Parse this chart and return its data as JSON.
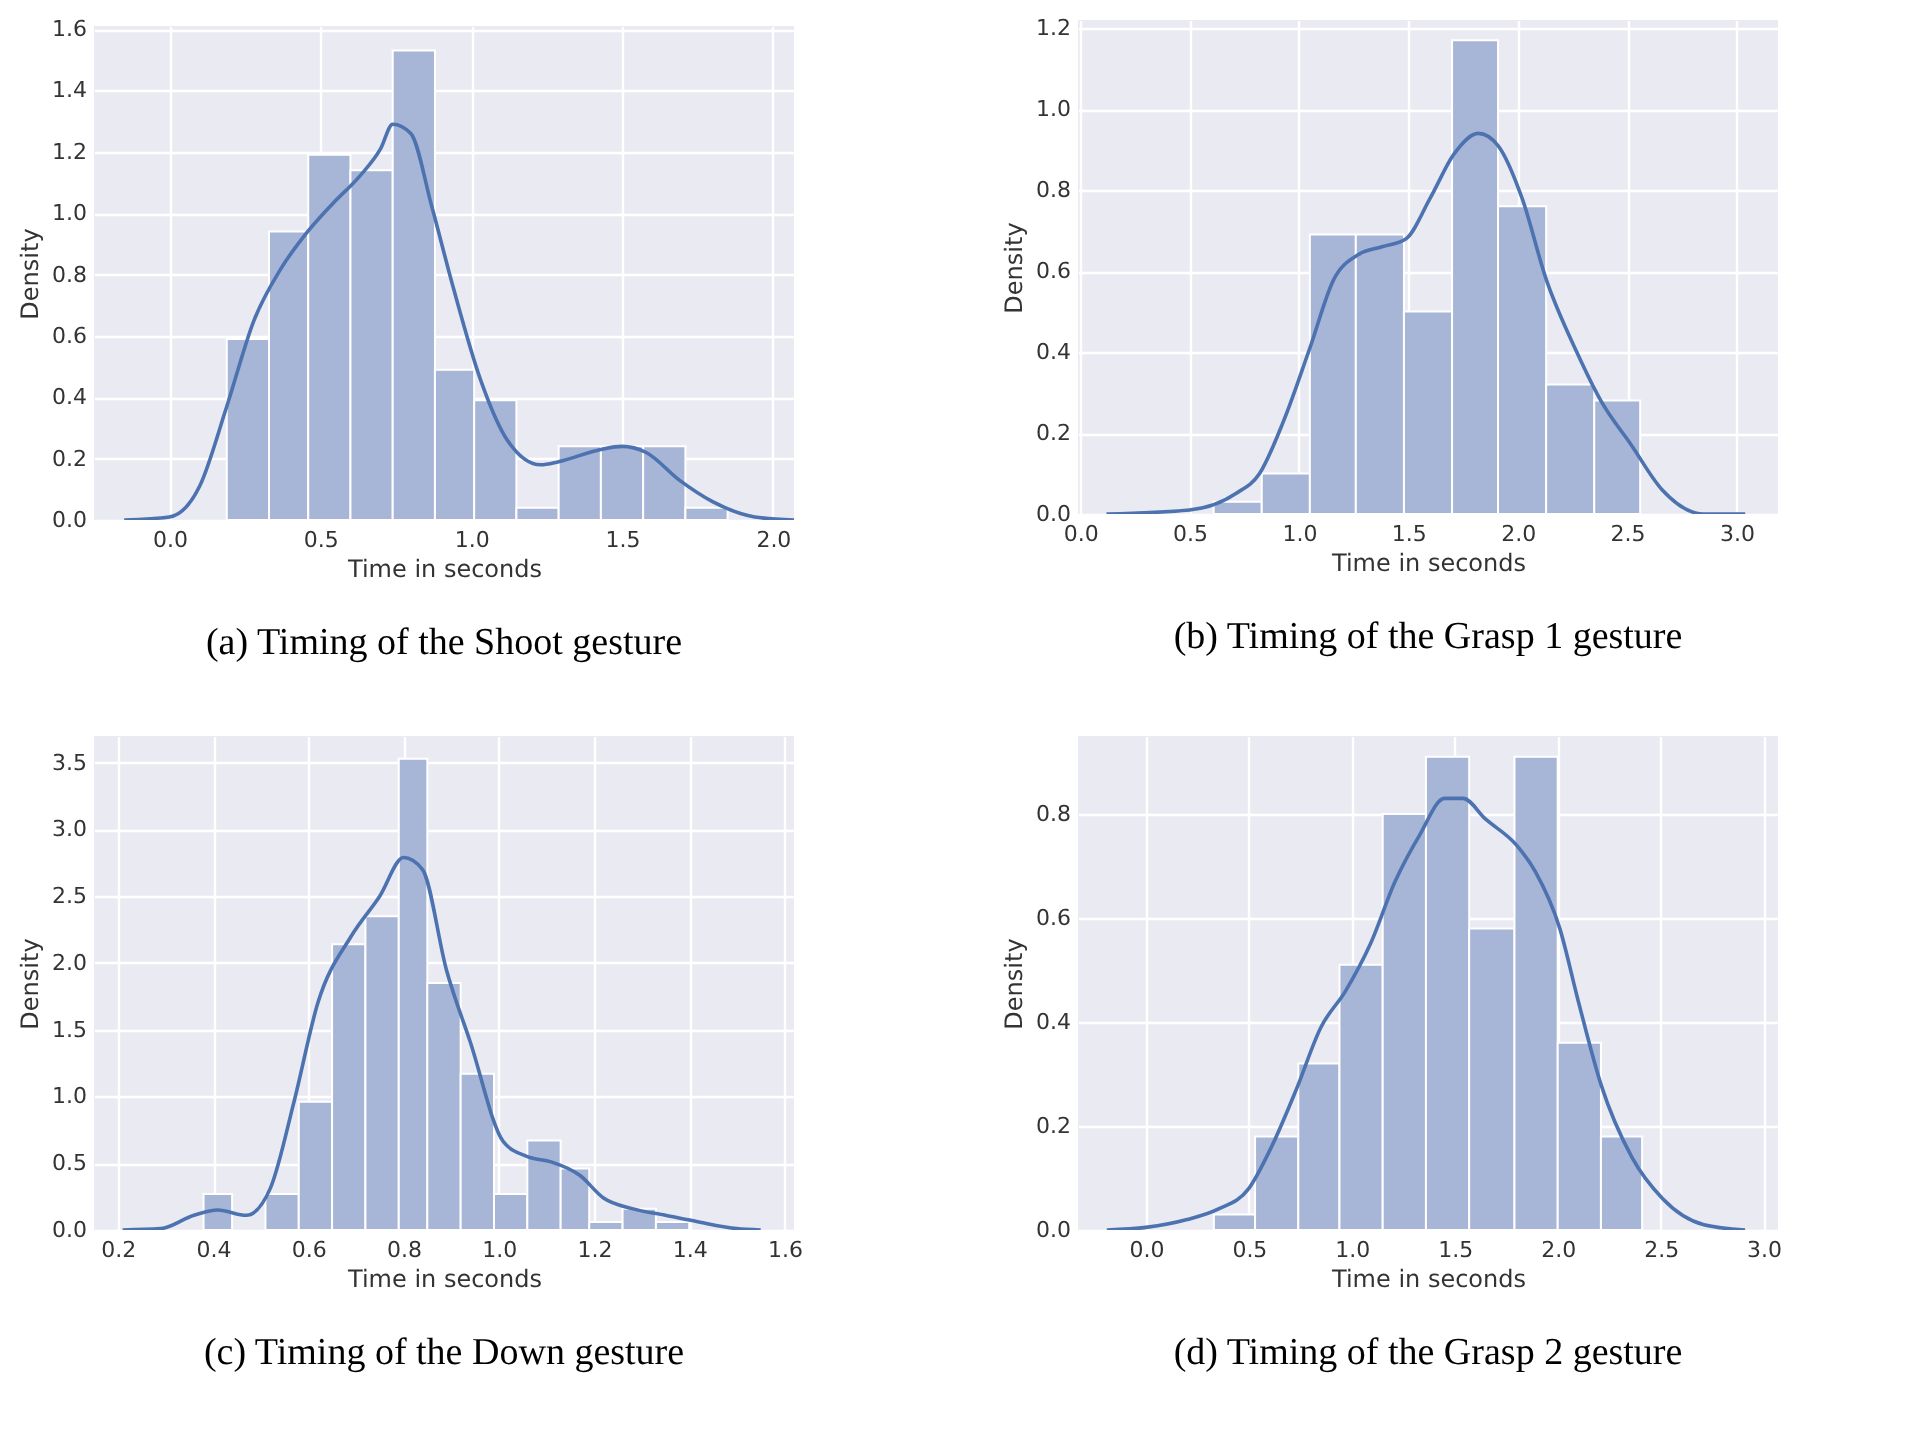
{
  "chart_data": [
    {
      "type": "histogram",
      "title": "(a) Timing of the Shoot gesture",
      "xlabel": "Time in seconds",
      "ylabel": "Density",
      "grid": true,
      "color": "#a7b5d6",
      "bins": [
        0.19,
        0.33,
        0.46,
        0.6,
        0.74,
        0.88,
        1.01,
        1.15,
        1.29,
        1.43,
        1.57,
        1.71,
        1.85
      ],
      "values": [
        0.59,
        0.94,
        1.19,
        1.14,
        1.53,
        0.49,
        0.39,
        0.04,
        0.24,
        0.24,
        0.24,
        0.04
      ],
      "series": [
        {
          "type": "line",
          "color": "#4c72b0",
          "x": [
            -0.15,
            0,
            0.1,
            0.19,
            0.28,
            0.37,
            0.45,
            0.54,
            0.63,
            0.7,
            0.74,
            0.8,
            0.87,
            0.94,
            1.03,
            1.12,
            1.23,
            1.29,
            1.43,
            1.5,
            1.58,
            1.69,
            1.8,
            1.94,
            2.07
          ],
          "values": [
            0,
            0.01,
            0.11,
            0.37,
            0.65,
            0.82,
            0.93,
            1.03,
            1.12,
            1.21,
            1.29,
            1.26,
            1.02,
            0.76,
            0.46,
            0.26,
            0.18,
            0.19,
            0.23,
            0.24,
            0.22,
            0.13,
            0.06,
            0.01,
            0
          ]
        }
      ],
      "xlim": [
        -0.25,
        2.07
      ],
      "xticks": [
        {
          "value": 0,
          "label": "0.0"
        },
        0.5,
        {
          "value": 1,
          "label": "1.0"
        },
        1.5,
        {
          "value": 2,
          "label": "2.0"
        }
      ],
      "ylim": [
        0,
        1.61
      ],
      "yticks": [
        {
          "value": 0,
          "label": "0.0"
        },
        0.2,
        0.4,
        0.6,
        0.8,
        {
          "value": 1,
          "label": "1.0"
        },
        1.2,
        1.4,
        1.6
      ]
    },
    {
      "type": "histogram",
      "title": "(b) Timing of the Grasp 1 gesture",
      "xlabel": "Time in seconds",
      "ylabel": "Density",
      "grid": true,
      "color": "#a7b5d6",
      "bins": [
        0.61,
        0.83,
        1.05,
        1.26,
        1.48,
        1.7,
        1.91,
        2.13,
        2.35,
        2.56
      ],
      "values": [
        0.03,
        0.1,
        0.69,
        0.69,
        0.5,
        1.17,
        0.76,
        0.32,
        0.28
      ],
      "series": [
        {
          "type": "line",
          "color": "#4c72b0",
          "x": [
            0.12,
            0.5,
            0.71,
            0.82,
            0.93,
            1.05,
            1.16,
            1.27,
            1.38,
            1.49,
            1.6,
            1.71,
            1.82,
            1.91,
            2.02,
            2.13,
            2.27,
            2.38,
            2.52,
            2.66,
            2.85,
            3.04
          ],
          "values": [
            0,
            0.01,
            0.05,
            0.1,
            0.23,
            0.41,
            0.58,
            0.64,
            0.66,
            0.68,
            0.78,
            0.89,
            0.94,
            0.91,
            0.78,
            0.58,
            0.4,
            0.28,
            0.17,
            0.06,
            0,
            0
          ]
        }
      ],
      "xlim": [
        -0.01,
        3.19
      ],
      "xticks": [
        {
          "value": 0,
          "label": "0.0"
        },
        0.5,
        {
          "value": 1,
          "label": "1.0"
        },
        1.5,
        {
          "value": 2,
          "label": "2.0"
        },
        2.5,
        {
          "value": 3,
          "label": "3.0"
        }
      ],
      "ylim": [
        0,
        1.22
      ],
      "yticks": [
        {
          "value": 0,
          "label": "0.0"
        },
        0.2,
        0.4,
        0.6,
        0.8,
        {
          "value": 1,
          "label": "1.0"
        },
        1.2
      ]
    },
    {
      "type": "histogram",
      "title": "(c) Timing of the Down gesture",
      "xlabel": "Time in seconds",
      "ylabel": "Density",
      "grid": true,
      "color": "#a7b5d6",
      "bins": [
        0.38,
        0.44,
        0.51,
        0.58,
        0.65,
        0.72,
        0.79,
        0.85,
        0.92,
        0.99,
        1.06,
        1.13,
        1.19,
        1.26,
        1.33,
        1.4
      ],
      "values": [
        0.27,
        0,
        0.27,
        0.96,
        2.14,
        2.35,
        3.53,
        1.85,
        1.17,
        0.27,
        0.67,
        0.46,
        0.06,
        0.16,
        0.06
      ],
      "series": [
        {
          "type": "line",
          "color": "#4c72b0",
          "x": [
            0.21,
            0.29,
            0.36,
            0.41,
            0.47,
            0.52,
            0.57,
            0.62,
            0.69,
            0.75,
            0.8,
            0.84,
            0.89,
            0.94,
            1.01,
            1.06,
            1.11,
            1.17,
            1.22,
            1.28,
            1.35,
            1.42,
            1.5,
            1.55
          ],
          "values": [
            0,
            0.01,
            0.11,
            0.15,
            0.11,
            0.31,
            0.96,
            1.7,
            2.2,
            2.5,
            2.79,
            2.7,
            1.95,
            1.41,
            0.66,
            0.55,
            0.51,
            0.41,
            0.24,
            0.16,
            0.11,
            0.06,
            0.01,
            0
          ]
        }
      ],
      "xlim": [
        0.15,
        1.62
      ],
      "xticks": [
        0.2,
        0.4,
        0.6,
        0.8,
        {
          "value": 1,
          "label": "1.0"
        },
        1.2,
        1.4,
        1.6
      ],
      "ylim": [
        0,
        3.7
      ],
      "yticks": [
        {
          "value": 0,
          "label": "0.0"
        },
        0.5,
        {
          "value": 1,
          "label": "1.0"
        },
        1.5,
        {
          "value": 2,
          "label": "2.0"
        },
        2.5,
        {
          "value": 3,
          "label": "3.0"
        },
        3.5
      ]
    },
    {
      "type": "histogram",
      "title": "(d) Timing of the Grasp 2 gesture",
      "xlabel": "Time in seconds",
      "ylabel": "Density",
      "grid": true,
      "color": "#a7b5d6",
      "bins": [
        0.33,
        0.53,
        0.74,
        0.94,
        1.15,
        1.36,
        1.57,
        1.79,
        2.0,
        2.21,
        2.41
      ],
      "values": [
        0.03,
        0.18,
        0.32,
        0.51,
        0.8,
        0.91,
        0.58,
        0.91,
        0.36,
        0.18
      ],
      "series": [
        {
          "type": "line",
          "color": "#4c72b0",
          "x": [
            -0.19,
            0,
            0.2,
            0.35,
            0.5,
            0.61,
            0.73,
            0.85,
            0.97,
            1.09,
            1.21,
            1.33,
            1.45,
            1.54,
            1.65,
            1.8,
            1.89,
            2.01,
            2.1,
            2.21,
            2.36,
            2.51,
            2.71,
            2.91
          ],
          "values": [
            0,
            0.005,
            0.02,
            0.04,
            0.08,
            0.16,
            0.27,
            0.39,
            0.46,
            0.55,
            0.67,
            0.76,
            0.83,
            0.83,
            0.79,
            0.74,
            0.69,
            0.58,
            0.44,
            0.28,
            0.14,
            0.06,
            0.01,
            0
          ]
        }
      ],
      "xlim": [
        -0.33,
        3.07
      ],
      "xticks": [
        {
          "value": 0,
          "label": "0.0"
        },
        0.5,
        {
          "value": 1,
          "label": "1.0"
        },
        1.5,
        {
          "value": 2,
          "label": "2.0"
        },
        2.5,
        {
          "value": 3,
          "label": "3.0"
        }
      ],
      "ylim": [
        0,
        0.95
      ],
      "yticks": [
        {
          "value": 0,
          "label": "0.0"
        },
        0.2,
        0.4,
        0.6,
        0.8
      ]
    }
  ]
}
